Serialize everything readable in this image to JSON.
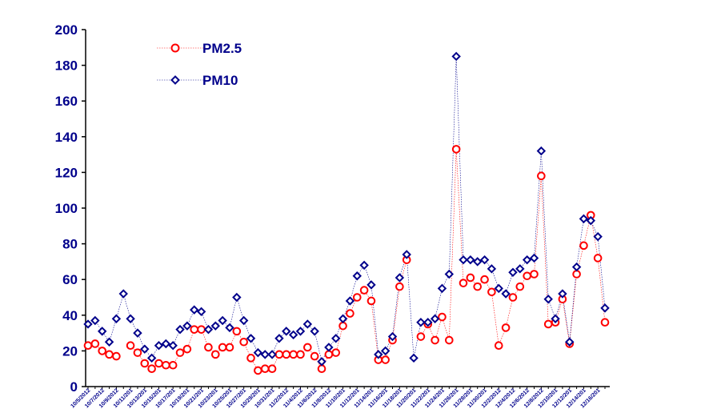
{
  "chart_data": {
    "type": "line",
    "title": "",
    "xlabel": "",
    "ylabel": "",
    "ylim": [
      0,
      200
    ],
    "yticks": [
      0,
      20,
      40,
      60,
      80,
      100,
      120,
      140,
      160,
      180,
      200
    ],
    "grid": false,
    "legend_position": "top-left",
    "x_tick_labels": [
      "10/5/2012",
      "10/7/2012",
      "10/9/2012",
      "10/11/201",
      "10/13/201",
      "10/15/201",
      "10/17/201",
      "10/19/201",
      "10/21/201",
      "10/23/201",
      "10/25/201",
      "10/27/201",
      "10/29/201",
      "10/31/201",
      "11/2/2012",
      "11/4/2012",
      "11/6/2012",
      "11/8/2012",
      "11/10/201",
      "11/12/201",
      "11/14/201",
      "11/16/201",
      "11/18/201",
      "11/20/201",
      "11/22/201",
      "11/24/201",
      "11/26/201",
      "11/28/201",
      "11/30/201",
      "12/2/2012",
      "12/4/2012",
      "12/6/2012",
      "12/8/2012",
      "12/10/201",
      "12/12/201",
      "12/14/201",
      "12/16/201"
    ],
    "series": [
      {
        "name": "PM2.5",
        "color": "#ff0000",
        "marker": "circle",
        "values": [
          23,
          24,
          20,
          18,
          17,
          null,
          23,
          19,
          13,
          10,
          13,
          12,
          12,
          19,
          21,
          32,
          32,
          22,
          18,
          22,
          22,
          31,
          25,
          16,
          9,
          10,
          10,
          18,
          18,
          18,
          18,
          22,
          17,
          10,
          18,
          19,
          34,
          41,
          50,
          54,
          48,
          15,
          15,
          26,
          56,
          71,
          null,
          28,
          35,
          26,
          39,
          26,
          133,
          58,
          61,
          56,
          60,
          53,
          23,
          33,
          50,
          56,
          62,
          63,
          118,
          35,
          36,
          49,
          24,
          63,
          79,
          96,
          72,
          36
        ]
      },
      {
        "name": "PM10",
        "color": "#00008b",
        "marker": "diamond",
        "values": [
          35,
          37,
          31,
          25,
          38,
          52,
          38,
          30,
          21,
          16,
          23,
          24,
          23,
          32,
          34,
          43,
          42,
          32,
          34,
          37,
          33,
          50,
          37,
          27,
          19,
          18,
          18,
          27,
          31,
          29,
          31,
          35,
          31,
          14,
          22,
          27,
          38,
          48,
          62,
          68,
          57,
          18,
          20,
          28,
          61,
          74,
          16,
          36,
          36,
          38,
          55,
          63,
          185,
          71,
          71,
          70,
          71,
          66,
          55,
          52,
          64,
          66,
          71,
          72,
          132,
          49,
          38,
          52,
          25,
          67,
          94,
          93,
          84,
          44
        ]
      }
    ]
  }
}
